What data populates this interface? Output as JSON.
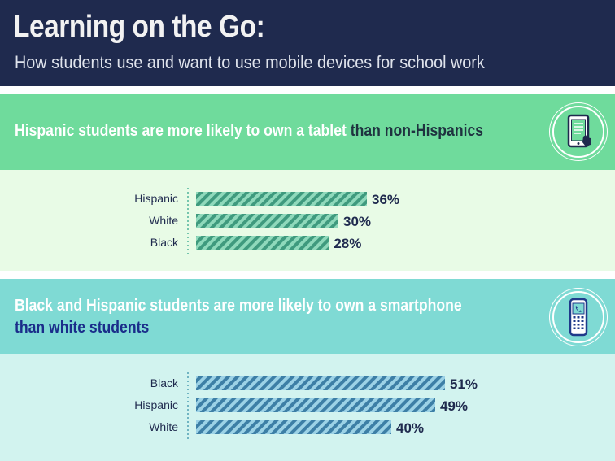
{
  "header": {
    "title": "Learning on the Go:",
    "subtitle": "How students use and want to use mobile devices for school work"
  },
  "colors": {
    "header_bg": "#1f2a4e",
    "section1_head": "#6fdb9c",
    "section1_body": "#e8fbe6",
    "section2_head": "#7fdad4",
    "section2_body": "#d2f3ef",
    "bar1": "#3f9a7e",
    "bar2": "#3d7fa6"
  },
  "icons": {
    "section1": "tablet-icon",
    "section2": "smartphone-icon"
  },
  "chart_data": [
    {
      "type": "bar",
      "orientation": "horizontal",
      "title_part1": "Hispanic students are more likely to own a tablet",
      "title_part2": " than non-Hispanics",
      "categories": [
        "Hispanic",
        "White",
        "Black"
      ],
      "values": [
        36,
        30,
        28
      ],
      "value_labels": [
        "36%",
        "30%",
        "28%"
      ],
      "unit": "%",
      "xlim": [
        0,
        100
      ]
    },
    {
      "type": "bar",
      "orientation": "horizontal",
      "title_line1": "Black and Hispanic students are more likely to own a smartphone",
      "title_line2": "than white students",
      "categories": [
        "Black",
        "Hispanic",
        "White"
      ],
      "values": [
        51,
        49,
        40
      ],
      "value_labels": [
        "51%",
        "49%",
        "40%"
      ],
      "unit": "%",
      "xlim": [
        0,
        100
      ]
    }
  ]
}
